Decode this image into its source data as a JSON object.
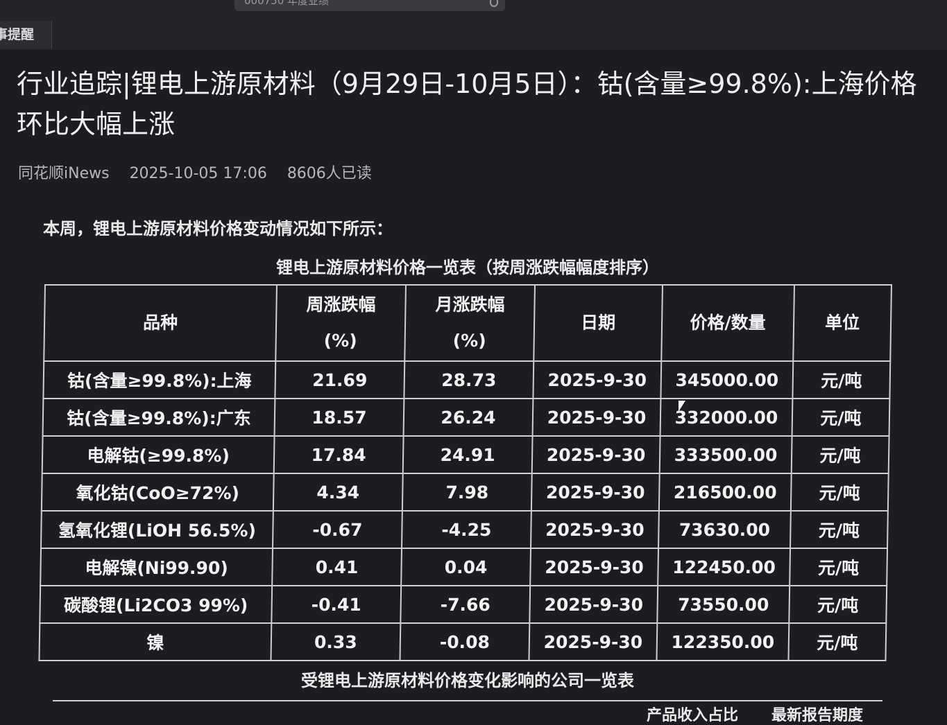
{
  "search": {
    "query": "000750 年度业绩"
  },
  "tab": {
    "label": "事提醒"
  },
  "article": {
    "title": "行业追踪|锂电上游原材料（9月29日-10月5日）：钴(含量≥99.8%):上海价格环比大幅上涨",
    "source": "同花顺iNews",
    "datetime": "2025-10-05 17:06",
    "reads": "8606人已读",
    "intro": "本周，锂电上游原材料价格变动情况如下所示："
  },
  "price_table": {
    "caption": "锂电上游原材料价格一览表（按周涨跌幅幅度排序）",
    "headers": [
      "品种",
      "周涨跌幅\n(%)",
      "月涨跌幅\n(%)",
      "日期",
      "价格/数量",
      "单位"
    ],
    "rows": [
      [
        "钴(含量≥99.8%):上海",
        "21.69",
        "28.73",
        "2025-9-30",
        "345000.00",
        "元/吨"
      ],
      [
        "钴(含量≥99.8%):广东",
        "18.57",
        "26.24",
        "2025-9-30",
        "332000.00",
        "元/吨"
      ],
      [
        "电解钴(≥99.8%)",
        "17.84",
        "24.91",
        "2025-9-30",
        "333500.00",
        "元/吨"
      ],
      [
        "氧化钴(CoO≥72%)",
        "4.34",
        "7.98",
        "2025-9-30",
        "216500.00",
        "元/吨"
      ],
      [
        "氢氧化锂(LiOH 56.5%)",
        "-0.67",
        "-4.25",
        "2025-9-30",
        "73630.00",
        "元/吨"
      ],
      [
        "电解镍(Ni99.90)",
        "0.41",
        "0.04",
        "2025-9-30",
        "122450.00",
        "元/吨"
      ],
      [
        "碳酸锂(Li2CO3 99%)",
        "-0.41",
        "-7.66",
        "2025-9-30",
        "73550.00",
        "元/吨"
      ],
      [
        "镍",
        "0.33",
        "-0.08",
        "2025-9-30",
        "122350.00",
        "元/吨"
      ]
    ]
  },
  "company_table": {
    "caption": "受锂电上游原材料价格变化影响的公司一览表",
    "partial_headers": [
      "产品收入占比",
      "最新报告期度"
    ]
  }
}
